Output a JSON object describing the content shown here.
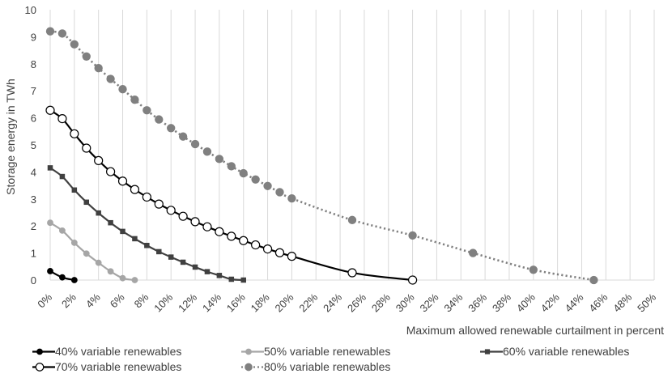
{
  "chart_data": {
    "type": "line",
    "title": "",
    "xlabel": "Maximum allowed renewable curtailment in percent",
    "ylabel": "Storage energy in TWh",
    "xlim": [
      0,
      50
    ],
    "ylim": [
      0,
      10
    ],
    "x_ticks": [
      "0%",
      "2%",
      "4%",
      "6%",
      "8%",
      "10%",
      "12%",
      "14%",
      "16%",
      "18%",
      "20%",
      "22%",
      "24%",
      "26%",
      "28%",
      "30%",
      "32%",
      "34%",
      "36%",
      "38%",
      "40%",
      "42%",
      "44%",
      "46%",
      "48%",
      "50%"
    ],
    "y_ticks": [
      "0",
      "1",
      "2",
      "3",
      "4",
      "5",
      "6",
      "7",
      "8",
      "9",
      "10"
    ],
    "grid": "vertical",
    "legend_position": "bottom",
    "series": [
      {
        "name": "40% variable renewables",
        "color": "#000000",
        "line_style": "solid",
        "marker": "filled-circle",
        "x": [
          0,
          1,
          2
        ],
        "y": [
          0.33,
          0.1,
          0.0
        ]
      },
      {
        "name": "50% variable renewables",
        "color": "#a6a6a6",
        "line_style": "solid",
        "marker": "filled-circle",
        "x": [
          0,
          1,
          2,
          3,
          4,
          5,
          6,
          7
        ],
        "y": [
          2.12,
          1.83,
          1.38,
          0.98,
          0.64,
          0.32,
          0.07,
          0.0
        ]
      },
      {
        "name": "60% variable renewables",
        "color": "#404040",
        "line_style": "solid",
        "marker": "square",
        "x": [
          0,
          1,
          2,
          3,
          4,
          5,
          6,
          7,
          8,
          9,
          10,
          11,
          12,
          13,
          14,
          15,
          16
        ],
        "y": [
          4.15,
          3.83,
          3.33,
          2.88,
          2.48,
          2.12,
          1.8,
          1.53,
          1.28,
          1.05,
          0.85,
          0.66,
          0.48,
          0.31,
          0.17,
          0.03,
          0.0
        ]
      },
      {
        "name": "70% variable renewables",
        "color": "#000000",
        "line_style": "solid",
        "marker": "open-circle",
        "x": [
          0,
          1,
          2,
          3,
          4,
          5,
          6,
          7,
          8,
          9,
          10,
          11,
          12,
          13,
          14,
          15,
          16,
          17,
          18,
          19,
          20,
          25,
          30
        ],
        "y": [
          6.28,
          5.97,
          5.41,
          4.88,
          4.42,
          4.01,
          3.66,
          3.35,
          3.07,
          2.81,
          2.58,
          2.36,
          2.16,
          1.97,
          1.79,
          1.62,
          1.46,
          1.3,
          1.15,
          1.01,
          0.88,
          0.27,
          0.0
        ]
      },
      {
        "name": "80% variable renewables",
        "color": "#808080",
        "line_style": "dotted",
        "marker": "filled-circle",
        "x": [
          0,
          1,
          2,
          3,
          4,
          5,
          6,
          7,
          8,
          9,
          10,
          11,
          12,
          13,
          14,
          15,
          16,
          17,
          18,
          19,
          20,
          25,
          30,
          35,
          40,
          45
        ],
        "y": [
          9.2,
          9.12,
          8.72,
          8.27,
          7.84,
          7.44,
          7.06,
          6.67,
          6.28,
          5.94,
          5.62,
          5.31,
          5.03,
          4.75,
          4.48,
          4.21,
          3.95,
          3.72,
          3.48,
          3.25,
          3.02,
          2.22,
          1.65,
          1.0,
          0.38,
          0.0
        ]
      }
    ]
  }
}
